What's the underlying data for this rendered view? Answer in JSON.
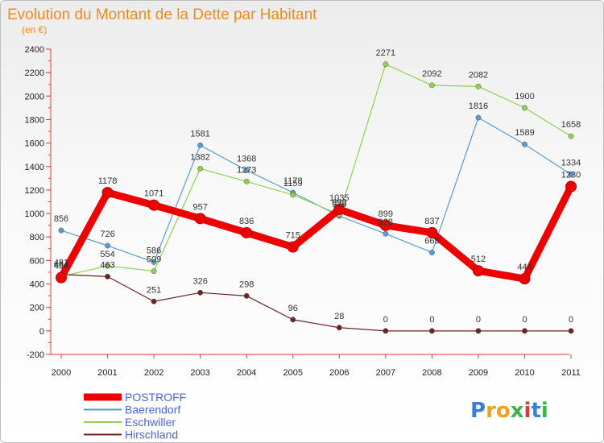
{
  "title": "Evolution du Montant de la Dette par Habitant",
  "subtitle": "(en €)",
  "logo": {
    "letters": [
      "P",
      "r",
      "o",
      "x",
      "i",
      "t",
      "i"
    ],
    "colors": [
      "#3b7fd4",
      "#f2a21a",
      "#f2a21a",
      "#3bb24a",
      "#d43b3b",
      "#3b7fd4",
      "#3bb24a"
    ]
  },
  "chart_data": {
    "type": "line",
    "x": [
      "2000",
      "2001",
      "2002",
      "2003",
      "2004",
      "2005",
      "2006",
      "2007",
      "2008",
      "2009",
      "2010",
      "2011"
    ],
    "ylim": [
      -200,
      2400
    ],
    "yticks": [
      -200,
      0,
      200,
      400,
      600,
      800,
      1000,
      1200,
      1400,
      1600,
      1800,
      2000,
      2200,
      2400
    ],
    "grid": false,
    "legend_position": "bottom-left",
    "series": [
      {
        "name": "Baerendorf",
        "color": "#5b9bd5",
        "values": [
          856,
          726,
          586,
          1581,
          1368,
          1178,
          979,
          828,
          668,
          1816,
          1589,
          1334
        ],
        "labels": [
          "856",
          "726",
          "586",
          "1581",
          "1368",
          "1178",
          "979",
          "828",
          "668",
          "1816",
          "1589",
          "1334"
        ]
      },
      {
        "name": "Eschwiller",
        "color": "#8fd14f",
        "values": [
          464,
          554,
          509,
          1382,
          1273,
          1159,
          992,
          2271,
          2092,
          2082,
          1900,
          1658
        ],
        "labels": [
          "464",
          "554",
          "509",
          "1382",
          "1273",
          "1159",
          "992",
          "2271",
          "2092",
          "2082",
          "1900",
          "1658"
        ]
      },
      {
        "name": "Hirschland",
        "color": "#6b2323",
        "values": [
          481,
          463,
          251,
          326,
          298,
          96,
          28,
          0,
          0,
          0,
          0,
          0
        ],
        "labels": [
          "481",
          "463",
          "251",
          "326",
          "298",
          "96",
          "28",
          "0",
          "0",
          "0",
          "0",
          "0"
        ]
      },
      {
        "name": "POSTROFF",
        "color": "#ee0000",
        "values": [
          454,
          1178,
          1071,
          957,
          836,
          715,
          1035,
          899,
          837,
          512,
          444,
          1230
        ],
        "labels": [
          "454",
          "1178",
          "1071",
          "957",
          "836",
          "715",
          "1035",
          "899",
          "837",
          "512",
          "444",
          "1230"
        ]
      }
    ]
  }
}
